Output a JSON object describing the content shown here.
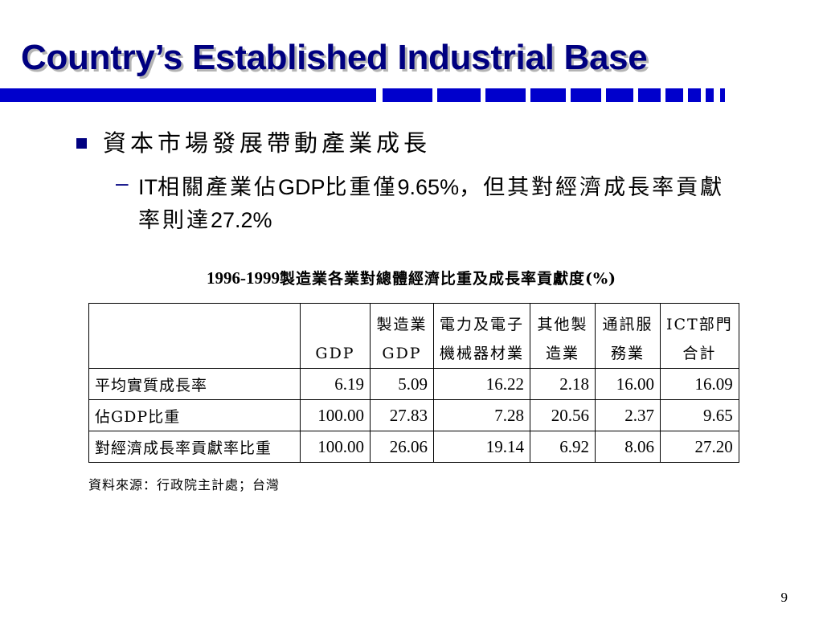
{
  "slide": {
    "title": "Country’s Established Industrial Base",
    "bullet_1": "資本市場發展帶動產業成長",
    "bullet_2_dash": "–",
    "bullet_2_a": "IT",
    "bullet_2_b": "相關產業佔",
    "bullet_2_c": "GDP",
    "bullet_2_d": "比重僅",
    "bullet_2_e": "9.65%",
    "bullet_2_f": "，但其對經濟成長率貢獻率則達",
    "bullet_2_g": "27.2%",
    "page_number": "9"
  },
  "table": {
    "caption_years": "1996-1999",
    "caption_text": "製造業各業對總體經濟比重及成長率貢獻度(%)",
    "headers": [
      [
        "",
        ""
      ],
      [
        "",
        "GDP"
      ],
      [
        "製造業",
        "GDP"
      ],
      [
        "電力及電子",
        "機械器材業"
      ],
      [
        "其他製",
        "造業"
      ],
      [
        "通訊服",
        "務業"
      ],
      [
        "ICT部門",
        "合計"
      ]
    ],
    "rows": [
      {
        "label": "平均實質成長率",
        "values": [
          "6.19",
          "5.09",
          "16.22",
          "2.18",
          "16.00",
          "16.09"
        ]
      },
      {
        "label": "佔GDP比重",
        "values": [
          "100.00",
          "27.83",
          "7.28",
          "20.56",
          "2.37",
          "9.65"
        ]
      },
      {
        "label": "對經濟成長率貢獻率比重",
        "values": [
          "100.00",
          "26.06",
          "19.14",
          "6.92",
          "8.06",
          "27.20"
        ]
      }
    ],
    "source": "資料來源：行政院主計處；台灣"
  },
  "colors": {
    "title": "#000080",
    "accent_bar": "#0000cc",
    "bullet": "#000080"
  }
}
